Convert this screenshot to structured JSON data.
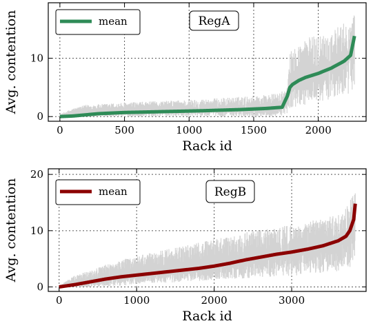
{
  "chart_data": [
    {
      "type": "line",
      "title": "RegA",
      "xlabel": "Rack id",
      "ylabel": "Avg. contention",
      "xlim": [
        -90,
        2370
      ],
      "ylim": [
        -0.8,
        19.5
      ],
      "xticks": [
        0,
        500,
        1000,
        1500,
        2000
      ],
      "yticks": [
        0,
        10
      ],
      "grid": true,
      "legend_position": "top-left",
      "n_racks": 2280,
      "series": [
        {
          "name": "mean",
          "color": "#2e8b57",
          "x": [
            0,
            100,
            200,
            300,
            500,
            800,
            1100,
            1400,
            1600,
            1720,
            1760,
            1780,
            1800,
            1850,
            1900,
            2000,
            2100,
            2200,
            2250,
            2280
          ],
          "y": [
            0,
            0.1,
            0.3,
            0.5,
            0.7,
            0.85,
            1.0,
            1.2,
            1.4,
            1.6,
            3.5,
            5.0,
            5.5,
            6.2,
            6.7,
            7.4,
            8.3,
            9.5,
            10.5,
            13.8
          ]
        },
        {
          "name": "",
          "color": "#d3d3d3",
          "band_upper": {
            "x": [
              0,
              100,
              200,
              500,
              800,
              1100,
              1400,
              1700,
              1760,
              1780,
              1900,
              2000,
              2100,
              2200,
              2250,
              2280
            ],
            "y": [
              0.4,
              1.4,
              2.0,
              2.4,
              2.7,
              3.0,
              3.4,
              4.0,
              5.0,
              11.0,
              13.5,
              14.0,
              14.8,
              16.0,
              17.0,
              17.5
            ]
          },
          "band_lower": {
            "x": [
              0,
              100,
              200,
              500,
              800,
              1100,
              1400,
              1700,
              1760,
              1780,
              1900,
              2000,
              2100,
              2200,
              2250,
              2280
            ],
            "y": [
              0,
              0,
              0,
              0,
              0,
              0,
              0,
              0,
              0.5,
              1.5,
              2.0,
              2.5,
              3.0,
              3.5,
              4.0,
              4.5
            ]
          }
        }
      ]
    },
    {
      "type": "line",
      "title": "RegB",
      "xlabel": "Rack id",
      "ylabel": "Avg. contention",
      "xlim": [
        -140,
        3960
      ],
      "ylim": [
        -0.8,
        21.0
      ],
      "xticks": [
        0,
        1000,
        2000,
        3000
      ],
      "yticks": [
        0,
        10,
        20
      ],
      "grid": true,
      "legend_position": "top-left",
      "n_racks": 3820,
      "series": [
        {
          "name": "mean",
          "color": "#8b0000",
          "x": [
            0,
            200,
            400,
            600,
            800,
            1000,
            1200,
            1400,
            1600,
            1800,
            2000,
            2200,
            2400,
            2600,
            2800,
            3000,
            3200,
            3400,
            3600,
            3700,
            3750,
            3800,
            3820
          ],
          "y": [
            0,
            0.4,
            0.9,
            1.4,
            1.8,
            2.1,
            2.4,
            2.7,
            3.0,
            3.3,
            3.7,
            4.2,
            4.8,
            5.3,
            5.8,
            6.2,
            6.7,
            7.3,
            8.2,
            9.0,
            10.0,
            12.0,
            14.8
          ]
        },
        {
          "name": "",
          "color": "#d3d3d3",
          "band_upper": {
            "x": [
              0,
              200,
              500,
              800,
              1000,
              1500,
              2000,
              2500,
              3000,
              3500,
              3700,
              3800,
              3820
            ],
            "y": [
              0.3,
              2.0,
              3.5,
              4.8,
              5.5,
              7.0,
              8.5,
              10.0,
              11.0,
              12.5,
              14.0,
              16.5,
              17.0
            ]
          },
          "band_lower": {
            "x": [
              0,
              200,
              500,
              800,
              1000,
              1500,
              2000,
              2500,
              3000,
              3500,
              3700,
              3800,
              3820
            ],
            "y": [
              0,
              0,
              0,
              0.2,
              0.4,
              0.8,
              1.2,
              1.6,
              2.0,
              2.5,
              3.0,
              3.5,
              4.0
            ]
          }
        }
      ]
    }
  ]
}
